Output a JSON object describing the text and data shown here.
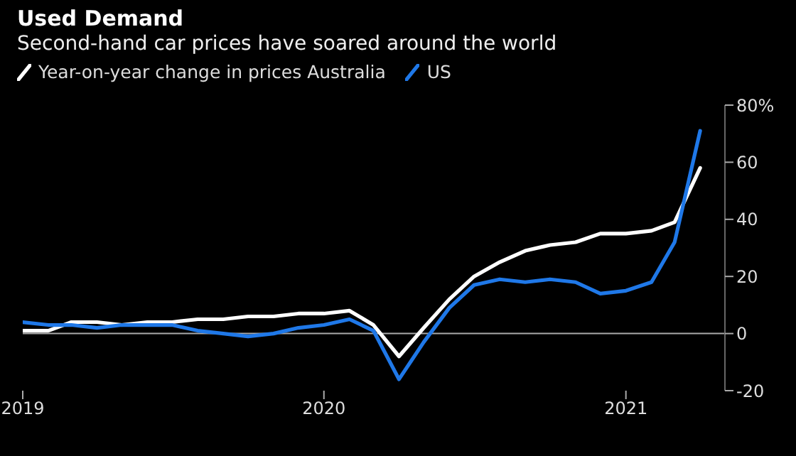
{
  "chart_data": {
    "type": "line",
    "title": "Used Demand",
    "subtitle": "Second-hand car prices have soared around the world",
    "x": [
      "2019-01",
      "2019-02",
      "2019-03",
      "2019-04",
      "2019-05",
      "2019-06",
      "2019-07",
      "2019-08",
      "2019-09",
      "2019-10",
      "2019-11",
      "2019-12",
      "2020-01",
      "2020-02",
      "2020-03",
      "2020-04",
      "2020-05",
      "2020-06",
      "2020-07",
      "2020-08",
      "2020-09",
      "2020-10",
      "2020-11",
      "2020-12",
      "2021-01",
      "2021-02",
      "2021-03",
      "2021-04"
    ],
    "series": [
      {
        "name": "Year-on-year change in prices Australia",
        "color": "#ffffff",
        "values": [
          1,
          1,
          4,
          4,
          3,
          4,
          4,
          5,
          5,
          6,
          6,
          7,
          7,
          8,
          3,
          -8,
          2,
          12,
          20,
          25,
          29,
          31,
          32,
          35,
          35,
          36,
          39,
          58
        ]
      },
      {
        "name": "US",
        "color": "#1f78e8",
        "values": [
          4,
          3,
          3,
          2,
          3,
          3,
          3,
          1,
          0,
          -1,
          0,
          2,
          3,
          5,
          1,
          -16,
          -3,
          9,
          17,
          19,
          18,
          19,
          18,
          14,
          15,
          18,
          32,
          71
        ]
      }
    ],
    "xlim": [
      "2019-01",
      "2021-05"
    ],
    "xticks": [
      "2019",
      "2020",
      "2021"
    ],
    "ylim": [
      -20,
      80
    ],
    "yticks": [
      -20,
      0,
      20,
      40,
      60,
      {
        "value": 80,
        "label": "80%"
      }
    ],
    "ref_lines": [
      {
        "axis": "y",
        "value": 0,
        "color": "#aaaaaa"
      }
    ],
    "grid": false,
    "legend": "top left",
    "marker": "none",
    "line_style": "solid"
  }
}
